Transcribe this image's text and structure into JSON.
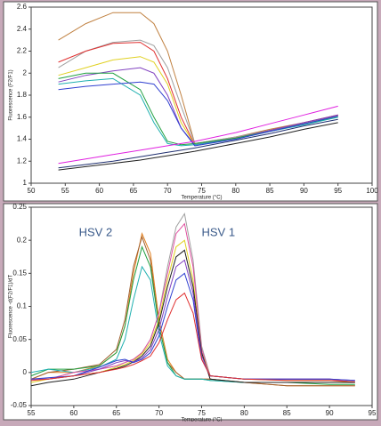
{
  "chart_data": [
    {
      "type": "line",
      "ylabel": "Fluorescence (F2/F1)",
      "xlabel": "Temperature (°C)",
      "xlim": [
        50,
        100
      ],
      "xticks": [
        50,
        55,
        60,
        65,
        70,
        75,
        80,
        85,
        90,
        95,
        100
      ],
      "ylim": [
        1,
        2.6
      ],
      "yticks": [
        1,
        1.2,
        1.4,
        1.6,
        1.8,
        2,
        2.2,
        2.4,
        2.6
      ],
      "x": [
        54,
        58,
        62,
        66,
        68,
        70,
        72,
        74,
        80,
        85,
        90,
        95
      ],
      "series": [
        {
          "color": "#c08040",
          "values": [
            2.3,
            2.45,
            2.55,
            2.55,
            2.45,
            2.2,
            1.8,
            1.36,
            1.42,
            1.49,
            1.55,
            1.62
          ]
        },
        {
          "color": "#a0a0a0",
          "values": [
            2.05,
            2.2,
            2.28,
            2.3,
            2.25,
            2.05,
            1.7,
            1.36,
            1.42,
            1.48,
            1.55,
            1.61
          ]
        },
        {
          "color": "#e03030",
          "values": [
            2.1,
            2.2,
            2.27,
            2.28,
            2.2,
            1.95,
            1.6,
            1.35,
            1.41,
            1.48,
            1.55,
            1.62
          ]
        },
        {
          "color": "#e0d020",
          "values": [
            1.98,
            2.05,
            2.12,
            2.15,
            2.1,
            1.9,
            1.55,
            1.35,
            1.41,
            1.48,
            1.54,
            1.61
          ]
        },
        {
          "color": "#8040c0",
          "values": [
            1.92,
            1.98,
            2.02,
            2.05,
            2,
            1.8,
            1.5,
            1.35,
            1.41,
            1.48,
            1.55,
            1.62
          ]
        },
        {
          "color": "#20a040",
          "values": [
            1.95,
            2,
            2,
            1.85,
            1.6,
            1.38,
            1.35,
            1.36,
            1.41,
            1.47,
            1.54,
            1.6
          ]
        },
        {
          "color": "#20b0b0",
          "values": [
            1.9,
            1.93,
            1.95,
            1.8,
            1.55,
            1.36,
            1.34,
            1.35,
            1.4,
            1.47,
            1.53,
            1.6
          ]
        },
        {
          "color": "#3040d0",
          "values": [
            1.85,
            1.88,
            1.9,
            1.92,
            1.9,
            1.75,
            1.5,
            1.34,
            1.4,
            1.47,
            1.54,
            1.61
          ]
        },
        {
          "color": "#e020e0",
          "values": [
            1.18,
            1.22,
            1.26,
            1.3,
            1.32,
            1.34,
            1.36,
            1.38,
            1.46,
            1.54,
            1.62,
            1.7
          ]
        },
        {
          "color": "#202020",
          "values": [
            1.12,
            1.15,
            1.18,
            1.21,
            1.23,
            1.25,
            1.27,
            1.29,
            1.36,
            1.42,
            1.49,
            1.55
          ]
        },
        {
          "color": "#203070",
          "values": [
            1.14,
            1.17,
            1.2,
            1.24,
            1.26,
            1.28,
            1.3,
            1.32,
            1.39,
            1.45,
            1.52,
            1.58
          ]
        }
      ]
    },
    {
      "type": "line",
      "ylabel": "Fluorescence -d(F2/F1)/dT",
      "xlabel": "Temperature (°C)",
      "annotations": [
        "HSV 2",
        "HSV 1"
      ],
      "xlim": [
        55,
        95
      ],
      "xticks": [
        55,
        60,
        65,
        70,
        75,
        80,
        85,
        90,
        95
      ],
      "ylim": [
        -0.05,
        0.25
      ],
      "yticks": [
        -0.05,
        0,
        0.05,
        0.1,
        0.15,
        0.2,
        0.25
      ],
      "x": [
        55,
        57,
        60,
        63,
        65,
        66,
        67,
        68,
        69,
        70,
        71,
        72,
        73,
        74,
        75,
        76,
        80,
        85,
        90,
        93
      ],
      "series": [
        {
          "color": "#e08020",
          "values": [
            -0.01,
            0,
            0,
            0.01,
            0.03,
            0.07,
            0.15,
            0.21,
            0.18,
            0.08,
            0.02,
            0,
            -0.01,
            -0.01,
            -0.01,
            -0.01,
            -0.015,
            -0.02,
            -0.02,
            -0.02
          ]
        },
        {
          "color": "#a06030",
          "values": [
            -0.01,
            0,
            0.005,
            0.012,
            0.035,
            0.08,
            0.16,
            0.205,
            0.17,
            0.07,
            0.015,
            0,
            -0.01,
            -0.01,
            -0.01,
            -0.01,
            -0.015,
            -0.02,
            -0.02,
            -0.02
          ]
        },
        {
          "color": "#20a040",
          "values": [
            -0.005,
            0.005,
            0.005,
            0.01,
            0.03,
            0.07,
            0.14,
            0.19,
            0.16,
            0.07,
            0.015,
            -0.005,
            -0.01,
            -0.01,
            -0.01,
            -0.012,
            -0.015,
            -0.015,
            -0.018,
            -0.018
          ]
        },
        {
          "color": "#20b0b0",
          "values": [
            0,
            0.005,
            0,
            0.008,
            0.02,
            0.05,
            0.11,
            0.16,
            0.14,
            0.06,
            0.01,
            -0.005,
            -0.01,
            -0.01,
            -0.01,
            -0.012,
            -0.015,
            -0.015,
            -0.015,
            -0.015
          ]
        },
        {
          "color": "#a0a0a0",
          "values": [
            -0.01,
            -0.01,
            0,
            0.005,
            0.01,
            0.015,
            0.02,
            0.03,
            0.05,
            0.09,
            0.16,
            0.22,
            0.24,
            0.17,
            0.04,
            -0.005,
            -0.01,
            -0.01,
            -0.01,
            -0.015
          ]
        },
        {
          "color": "#e050a0",
          "values": [
            -0.01,
            -0.01,
            0,
            0.005,
            0.01,
            0.015,
            0.02,
            0.03,
            0.05,
            0.09,
            0.15,
            0.21,
            0.225,
            0.16,
            0.035,
            -0.005,
            -0.01,
            -0.01,
            -0.01,
            -0.015
          ]
        },
        {
          "color": "#e0d020",
          "values": [
            -0.015,
            -0.01,
            -0.005,
            0,
            0.008,
            0.012,
            0.018,
            0.028,
            0.045,
            0.08,
            0.14,
            0.19,
            0.2,
            0.14,
            0.03,
            -0.005,
            -0.01,
            -0.012,
            -0.012,
            -0.015
          ]
        },
        {
          "color": "#202020",
          "values": [
            -0.02,
            -0.015,
            -0.01,
            0,
            0.006,
            0.01,
            0.016,
            0.025,
            0.04,
            0.075,
            0.13,
            0.175,
            0.185,
            0.13,
            0.03,
            -0.01,
            -0.015,
            -0.015,
            -0.015,
            -0.015
          ]
        },
        {
          "color": "#8040c0",
          "values": [
            -0.01,
            -0.01,
            -0.005,
            0.005,
            0.015,
            0.018,
            0.016,
            0.022,
            0.035,
            0.065,
            0.115,
            0.16,
            0.17,
            0.12,
            0.025,
            -0.005,
            -0.01,
            -0.01,
            -0.01,
            -0.012
          ]
        },
        {
          "color": "#3040d0",
          "values": [
            -0.01,
            -0.008,
            -0.005,
            0.008,
            0.018,
            0.02,
            0.015,
            0.02,
            0.03,
            0.055,
            0.1,
            0.14,
            0.15,
            0.11,
            0.02,
            -0.005,
            -0.01,
            -0.01,
            -0.01,
            -0.012
          ]
        },
        {
          "color": "#e03030",
          "values": [
            -0.012,
            -0.01,
            -0.005,
            0,
            0.005,
            0.008,
            0.012,
            0.018,
            0.025,
            0.045,
            0.08,
            0.11,
            0.12,
            0.09,
            0.02,
            -0.005,
            -0.01,
            -0.012,
            -0.012,
            -0.014
          ]
        }
      ]
    }
  ]
}
